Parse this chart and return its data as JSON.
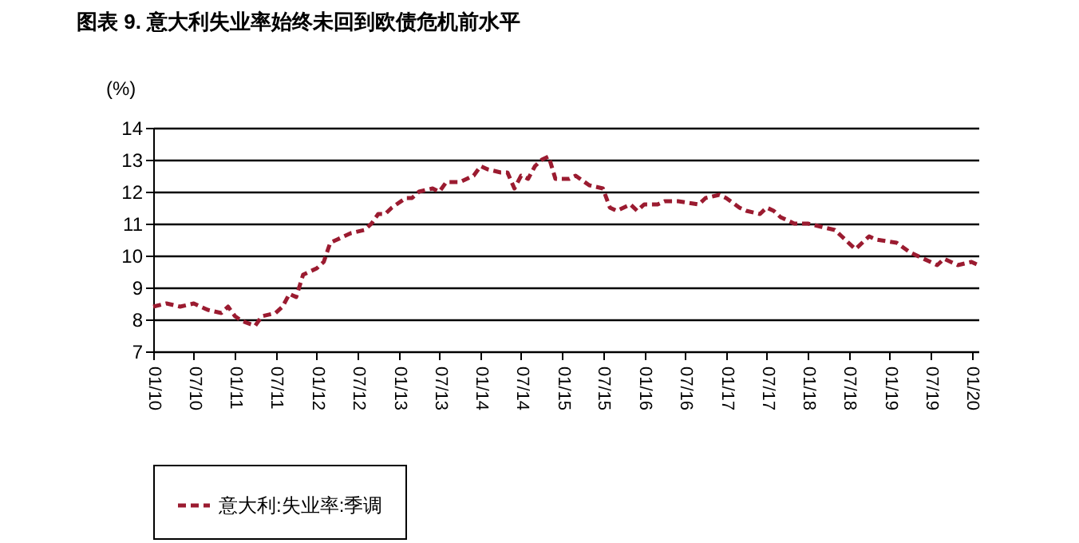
{
  "chart_data": {
    "type": "line",
    "title": "图表 9. 意大利失业率始终未回到欧债危机前水平",
    "ylabel": "(%)",
    "x": [
      "2010-01",
      "2010-03",
      "2010-05",
      "2010-07",
      "2010-09",
      "2010-11",
      "2010-12",
      "2011-01",
      "2011-02",
      "2011-04",
      "2011-05",
      "2011-07",
      "2011-08",
      "2011-09",
      "2011-10",
      "2011-11",
      "2012-01",
      "2012-02",
      "2012-03",
      "2012-04",
      "2012-06",
      "2012-08",
      "2012-09",
      "2012-10",
      "2012-11",
      "2012-12",
      "2013-02",
      "2013-03",
      "2013-04",
      "2013-06",
      "2013-07",
      "2013-08",
      "2013-10",
      "2013-12",
      "2014-01",
      "2014-02",
      "2014-04",
      "2014-05",
      "2014-06",
      "2014-07",
      "2014-08",
      "2014-09",
      "2014-10",
      "2014-11",
      "2014-12",
      "2015-02",
      "2015-03",
      "2015-05",
      "2015-07",
      "2015-08",
      "2015-09",
      "2015-11",
      "2015-12",
      "2016-01",
      "2016-03",
      "2016-04",
      "2016-06",
      "2016-09",
      "2016-10",
      "2016-12",
      "2017-01",
      "2017-03",
      "2017-04",
      "2017-06",
      "2017-07",
      "2017-08",
      "2017-09",
      "2017-11",
      "2018-01",
      "2018-03",
      "2018-05",
      "2018-06",
      "2018-07",
      "2018-08",
      "2018-10",
      "2018-11",
      "2019-02",
      "2019-04",
      "2019-06",
      "2019-08",
      "2019-09",
      "2019-11",
      "2020-01",
      "2020-02"
    ],
    "series": [
      {
        "name": "意大利:失业率:季调",
        "color": "#9b1b30",
        "values": [
          8.4,
          8.5,
          8.4,
          8.5,
          8.3,
          8.2,
          8.4,
          8.1,
          7.95,
          7.8,
          8.1,
          8.2,
          8.4,
          8.8,
          8.7,
          9.4,
          9.6,
          9.8,
          10.4,
          10.5,
          10.7,
          10.8,
          11.0,
          11.3,
          11.3,
          11.5,
          11.8,
          11.8,
          12.0,
          12.1,
          12.0,
          12.3,
          12.3,
          12.5,
          12.8,
          12.7,
          12.6,
          12.6,
          12.1,
          12.5,
          12.4,
          12.8,
          13.0,
          13.1,
          12.4,
          12.4,
          12.5,
          12.2,
          12.1,
          11.5,
          11.4,
          11.6,
          11.4,
          11.6,
          11.6,
          11.7,
          11.7,
          11.6,
          11.8,
          11.9,
          11.8,
          11.5,
          11.4,
          11.3,
          11.5,
          11.4,
          11.2,
          11.0,
          11.0,
          10.9,
          10.8,
          10.6,
          10.4,
          10.2,
          10.6,
          10.5,
          10.4,
          10.1,
          9.9,
          9.7,
          9.9,
          9.7,
          9.8,
          9.7
        ]
      }
    ],
    "xlim": [
      "2010-01",
      "2020-02"
    ],
    "xticks": [
      {
        "value": "2010-01",
        "label": "01/10"
      },
      {
        "value": "2010-07",
        "label": "07/10"
      },
      {
        "value": "2011-01",
        "label": "01/11"
      },
      {
        "value": "2011-07",
        "label": "07/11"
      },
      {
        "value": "2012-01",
        "label": "01/12"
      },
      {
        "value": "2012-07",
        "label": "07/12"
      },
      {
        "value": "2013-01",
        "label": "01/13"
      },
      {
        "value": "2013-07",
        "label": "07/13"
      },
      {
        "value": "2014-01",
        "label": "01/14"
      },
      {
        "value": "2014-07",
        "label": "07/14"
      },
      {
        "value": "2015-01",
        "label": "01/15"
      },
      {
        "value": "2015-07",
        "label": "07/15"
      },
      {
        "value": "2016-01",
        "label": "01/16"
      },
      {
        "value": "2016-07",
        "label": "07/16"
      },
      {
        "value": "2017-01",
        "label": "01/17"
      },
      {
        "value": "2017-07",
        "label": "07/17"
      },
      {
        "value": "2018-01",
        "label": "01/18"
      },
      {
        "value": "2018-07",
        "label": "07/18"
      },
      {
        "value": "2019-01",
        "label": "01/19"
      },
      {
        "value": "2019-07",
        "label": "07/19"
      },
      {
        "value": "2020-01",
        "label": "01/20"
      }
    ],
    "ylim": [
      7,
      14
    ],
    "yticks": [
      7,
      8,
      9,
      10,
      11,
      12,
      13,
      14
    ],
    "grid": "y",
    "legend": "bottom",
    "line_style": "dashed",
    "marker": "none"
  }
}
